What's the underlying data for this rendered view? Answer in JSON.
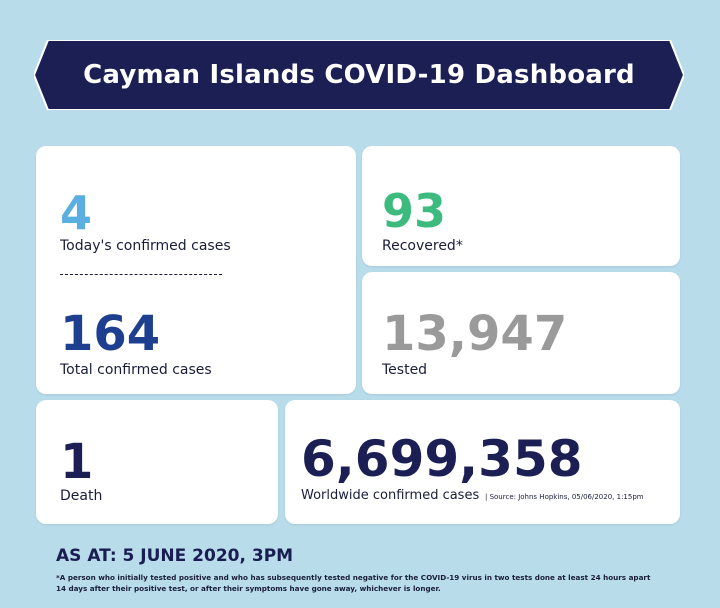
{
  "title": "Cayman Islands COVID-19 Dashboard",
  "colors": {
    "background": "#b8dcea",
    "banner": "#1b1f54",
    "today": "#5aaee0",
    "total": "#1e3f8f",
    "recovered": "#3dbb7e",
    "tested": "#9a9a9a",
    "dark": "#1b1f54"
  },
  "stats": {
    "today": {
      "value": "4",
      "label": "Today's confirmed cases"
    },
    "total": {
      "value": "164",
      "label": "Total confirmed cases"
    },
    "recovered": {
      "value": "93",
      "label": "Recovered*"
    },
    "tested": {
      "value": "13,947",
      "label": "Tested"
    },
    "death": {
      "value": "1",
      "label": "Death"
    },
    "worldwide": {
      "value": "6,699,358",
      "label": "Worldwide confirmed cases",
      "source": "| Source: Johns Hopkins, 05/06/2020, 1:15pm"
    }
  },
  "as_at": "AS AT: 5 JUNE 2020, 3PM",
  "footnote": "*A person who initially tested positive and who has subsequently tested negative for the COVID-19 virus in two tests done at least 24 hours apart 14 days after their positive test, or after their symptoms have gone away, whichever is longer."
}
